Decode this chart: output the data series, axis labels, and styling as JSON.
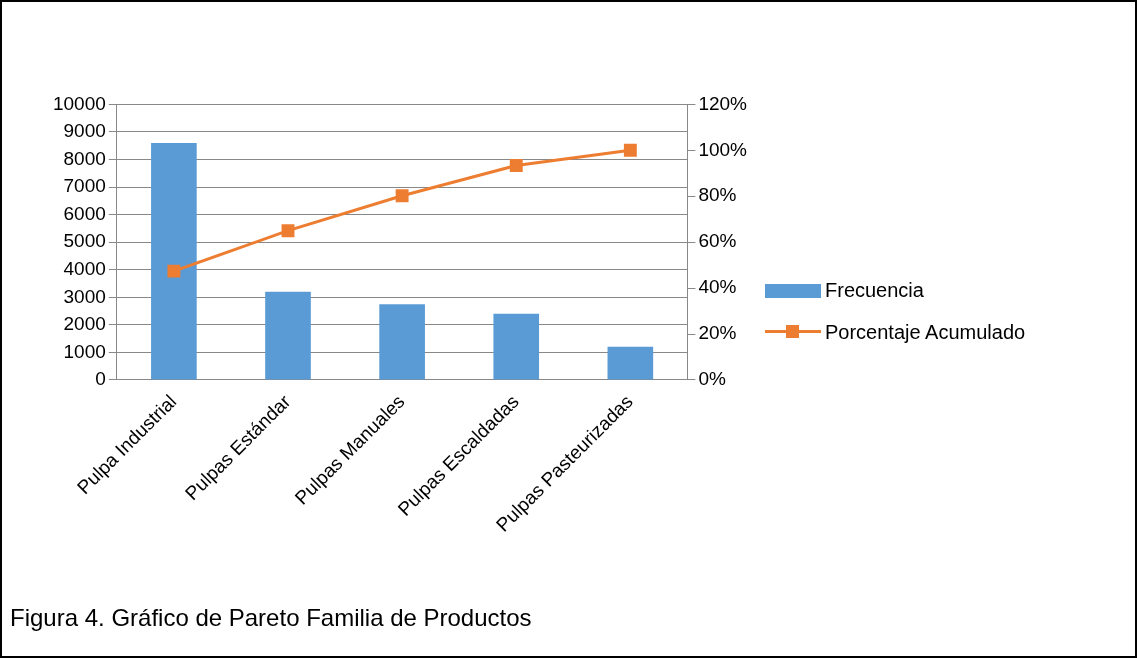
{
  "chart_data": {
    "type": "bar",
    "categories": [
      "Pulpa Industrial",
      "Pulpas Estándar",
      "Pulpas Manuales",
      "Pulpas Escaldadas",
      "Pulpas Pasteurizadas"
    ],
    "series": [
      {
        "name": "Frecuencia",
        "color": "#5b9bd5",
        "values": [
          8600,
          3200,
          2750,
          2400,
          1200
        ]
      },
      {
        "name": "Porcentaje Acumulado",
        "type": "line",
        "axis": "y2",
        "color": "#ed7d31",
        "marker": "square",
        "values": [
          47.4,
          65,
          80.2,
          93.4,
          100
        ]
      }
    ],
    "ylim": [
      0,
      10000
    ],
    "yticks": [
      0,
      1000,
      2000,
      3000,
      4000,
      5000,
      6000,
      7000,
      8000,
      9000,
      10000
    ],
    "y2lim": [
      0,
      120
    ],
    "y2ticks": [
      {
        "value": 0,
        "label": "0%"
      },
      {
        "value": 20,
        "label": "20%"
      },
      {
        "value": 40,
        "label": "40%"
      },
      {
        "value": 60,
        "label": "60%"
      },
      {
        "value": 80,
        "label": "80%"
      },
      {
        "value": 100,
        "label": "100%"
      },
      {
        "value": 120,
        "label": "120%"
      }
    ],
    "grid": "y",
    "legend": "right",
    "annotations": [
      "Figura 4. Gráfico de Pareto Familia de Productos"
    ]
  }
}
